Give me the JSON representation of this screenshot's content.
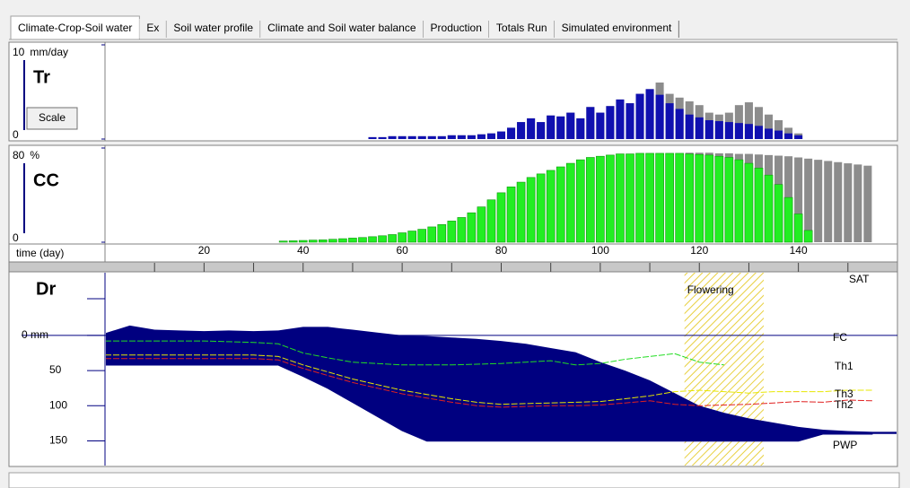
{
  "tabs": [
    "Climate-Crop-Soil water",
    "Ex",
    "Soil water profile",
    "Climate and Soil water balance",
    "Production",
    "Totals Run",
    "Simulated environment"
  ],
  "time_axis": {
    "label": "time (day)",
    "xlim": [
      0,
      160
    ],
    "xticks": [
      20,
      40,
      60,
      80,
      100,
      120,
      140
    ],
    "minor_xticks": [
      10,
      30,
      50,
      70,
      90,
      110,
      130,
      150
    ]
  },
  "chart_data": [
    {
      "type": "bar",
      "label": "Tr",
      "unit": "mm/day",
      "button": "Scale",
      "ylim": [
        0,
        10
      ],
      "yticks": [
        0,
        10
      ],
      "x": [
        54,
        56,
        58,
        60,
        62,
        64,
        66,
        68,
        70,
        72,
        74,
        76,
        78,
        80,
        82,
        84,
        86,
        88,
        90,
        92,
        94,
        96,
        98,
        100,
        102,
        104,
        106,
        108,
        110,
        112,
        114,
        116,
        118,
        120,
        122,
        124,
        126,
        128,
        130,
        132,
        134,
        136,
        138,
        140
      ],
      "series": [
        {
          "color": "#8c8c8c",
          "values": [
            0.2,
            0.2,
            0.3,
            0.3,
            0.3,
            0.3,
            0.3,
            0.3,
            0.4,
            0.4,
            0.4,
            0.5,
            0.6,
            0.8,
            1.2,
            1.8,
            2.2,
            1.8,
            2.5,
            2.4,
            2.8,
            2.2,
            3.4,
            2.8,
            3.5,
            4.2,
            3.8,
            4.8,
            5.3,
            6.0,
            4.8,
            4.4,
            4.0,
            3.6,
            2.8,
            2.6,
            2.8,
            3.6,
            3.9,
            3.4,
            2.6,
            2.0,
            1.2,
            0.6
          ]
        },
        {
          "color": "#1010b0",
          "values": [
            0.2,
            0.2,
            0.3,
            0.3,
            0.3,
            0.3,
            0.3,
            0.3,
            0.4,
            0.4,
            0.4,
            0.5,
            0.6,
            0.8,
            1.2,
            1.8,
            2.2,
            1.8,
            2.5,
            2.4,
            2.8,
            2.2,
            3.4,
            2.8,
            3.5,
            4.2,
            3.8,
            4.8,
            5.3,
            4.7,
            3.8,
            3.2,
            2.6,
            2.3,
            2.0,
            1.9,
            1.8,
            1.7,
            1.6,
            1.4,
            1.1,
            0.9,
            0.6,
            0.4
          ]
        }
      ]
    },
    {
      "type": "bar",
      "label": "CC",
      "unit": "%",
      "ylim": [
        0,
        80
      ],
      "yticks": [
        0,
        80
      ],
      "x": [
        36,
        38,
        40,
        42,
        44,
        46,
        48,
        50,
        52,
        54,
        56,
        58,
        60,
        62,
        64,
        66,
        68,
        70,
        72,
        74,
        76,
        78,
        80,
        82,
        84,
        86,
        88,
        90,
        92,
        94,
        96,
        98,
        100,
        102,
        104,
        106,
        108,
        110,
        112,
        114,
        116,
        118,
        120,
        122,
        124,
        126,
        128,
        130,
        132,
        134,
        136,
        138,
        140,
        142,
        144,
        146,
        148,
        150,
        152,
        154
      ],
      "series": [
        {
          "color": "#8c8c8c",
          "values": [
            1,
            1.2,
            1.5,
            1.8,
            2,
            2.5,
            3,
            3.5,
            4,
            4.7,
            5.5,
            6.5,
            8,
            9.5,
            11,
            13,
            15,
            18,
            21,
            25,
            30,
            36,
            42,
            47,
            51,
            55,
            58,
            61,
            64,
            67,
            70,
            72,
            73,
            74,
            75,
            75,
            75.5,
            75.5,
            75.5,
            75.5,
            75.5,
            76,
            76,
            76,
            75.5,
            75.5,
            75,
            75,
            74.5,
            74,
            73.5,
            73,
            72,
            71,
            70,
            69,
            68,
            67,
            66,
            65
          ]
        },
        {
          "color": "#22ee22",
          "values": [
            1,
            1.2,
            1.5,
            1.8,
            2,
            2.5,
            3,
            3.5,
            4,
            4.7,
            5.5,
            6.5,
            8,
            9.5,
            11,
            13,
            15,
            18,
            21,
            25,
            30,
            36,
            42,
            47,
            51,
            55,
            58,
            61,
            64,
            67,
            70,
            72,
            73,
            74,
            75,
            75,
            75.5,
            75.5,
            75.5,
            75.5,
            75.5,
            75,
            74.5,
            74,
            73,
            72,
            70,
            67,
            63,
            57,
            49,
            38,
            24,
            10,
            null,
            null,
            null,
            null,
            null,
            null
          ]
        }
      ]
    },
    {
      "type": "area",
      "label": "Dr",
      "ylim": [
        -89,
        185
      ],
      "yticks": [
        {
          "value": 0,
          "label": "0 mm"
        },
        50,
        100,
        150
      ],
      "x": [
        0,
        5,
        10,
        15,
        20,
        25,
        30,
        35,
        40,
        45,
        50,
        55,
        60,
        65,
        70,
        75,
        80,
        85,
        90,
        95,
        100,
        105,
        110,
        115,
        120,
        125,
        130,
        135,
        140,
        145,
        150,
        155
      ],
      "area": {
        "color": "#000080",
        "top": [
          -3,
          -14,
          -8,
          -7,
          -6,
          -7,
          -6,
          -7,
          -12,
          -12,
          -8,
          -4,
          0,
          1,
          3,
          5,
          8,
          12,
          18,
          24,
          38,
          50,
          64,
          82,
          100,
          110,
          118,
          124,
          130,
          134,
          136,
          137
        ],
        "bottom": [
          42,
          42,
          42,
          42,
          42,
          42,
          42,
          42,
          58,
          75,
          95,
          115,
          135,
          150,
          150,
          150,
          150,
          150,
          150,
          150,
          150,
          150,
          150,
          150,
          150,
          150,
          150,
          150,
          150,
          140,
          140,
          140
        ]
      },
      "fc": {
        "name": "FC",
        "value": 0,
        "color": "#000080"
      },
      "sat_label": "SAT",
      "pwp_label": "PWP",
      "flowering": {
        "label": "Flowering",
        "start": 117,
        "end": 133
      },
      "series": [
        {
          "name": "Th1",
          "color": "#22dd22",
          "x": [
            0,
            5,
            10,
            15,
            20,
            25,
            30,
            35,
            40,
            45,
            50,
            55,
            60,
            65,
            70,
            75,
            80,
            85,
            90,
            95,
            100,
            105,
            110,
            115,
            120,
            125
          ],
          "values": [
            8,
            8,
            8,
            8,
            8,
            9,
            10,
            12,
            25,
            32,
            38,
            40,
            42,
            42,
            42,
            41,
            40,
            38,
            36,
            42,
            40,
            34,
            30,
            26,
            38,
            42
          ]
        },
        {
          "name": "Th3",
          "color": "#e8e800",
          "x": [
            0,
            5,
            10,
            15,
            20,
            25,
            30,
            35,
            40,
            45,
            50,
            55,
            60,
            65,
            70,
            75,
            80,
            85,
            90,
            95,
            100,
            105,
            110,
            115,
            120,
            125,
            130,
            135,
            140,
            145,
            150,
            155
          ],
          "values": [
            28,
            28,
            28,
            28,
            28,
            28,
            28,
            30,
            42,
            52,
            62,
            70,
            78,
            84,
            90,
            95,
            98,
            97,
            96,
            95,
            94,
            90,
            86,
            80,
            78,
            80,
            82,
            80,
            80,
            80,
            78,
            78
          ]
        },
        {
          "name": "Th2",
          "color": "#e02020",
          "x": [
            0,
            5,
            10,
            15,
            20,
            25,
            30,
            35,
            40,
            45,
            50,
            55,
            60,
            65,
            70,
            75,
            80,
            85,
            90,
            95,
            100,
            105,
            110,
            115,
            120,
            125,
            130,
            135,
            140,
            145,
            150,
            155
          ],
          "values": [
            33,
            33,
            33,
            33,
            33,
            33,
            33,
            35,
            47,
            57,
            67,
            75,
            83,
            89,
            95,
            100,
            102,
            101,
            100,
            100,
            99,
            96,
            93,
            98,
            100,
            99,
            98,
            96,
            94,
            95,
            92,
            93
          ]
        }
      ]
    }
  ]
}
